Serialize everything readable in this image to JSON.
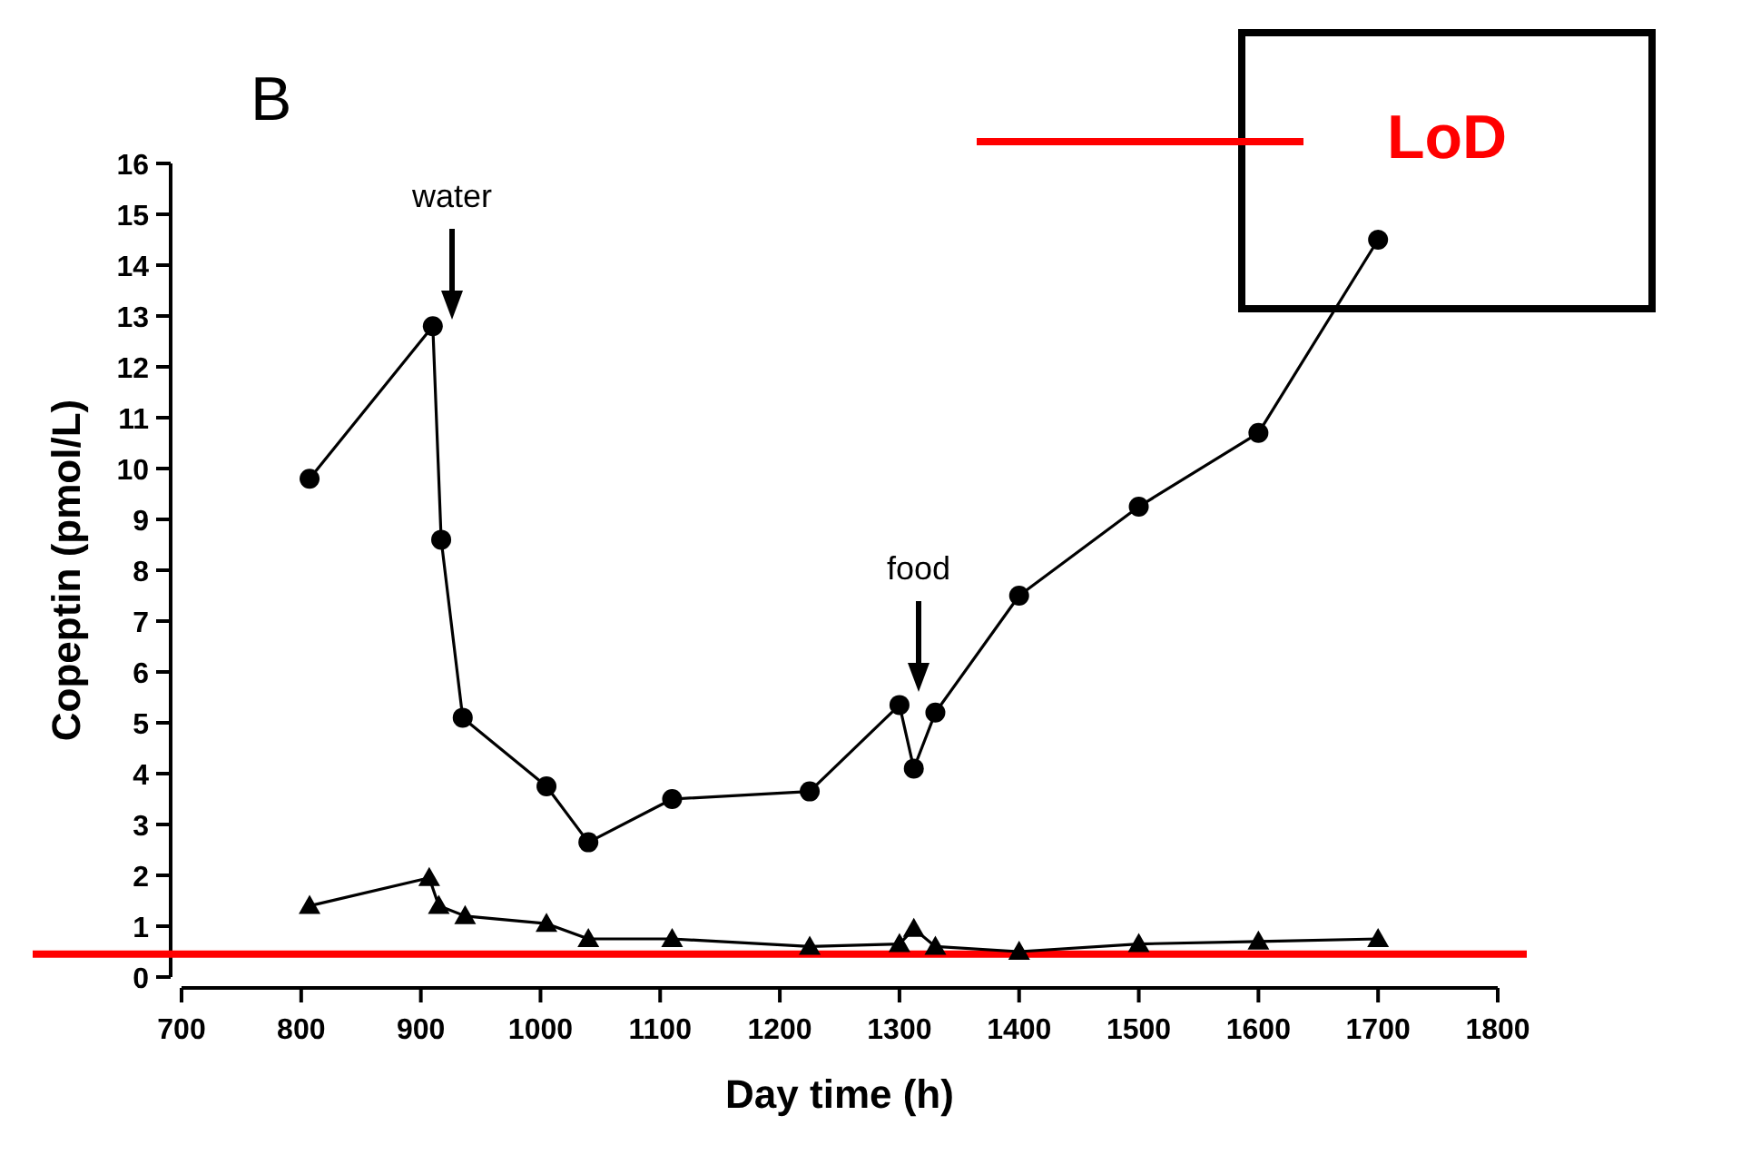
{
  "chart_data": {
    "type": "line",
    "title": "B",
    "xlabel": "Day time (h)",
    "ylabel": "Copeptin (pmol/L)",
    "xlim": [
      700,
      1800
    ],
    "xticks": [
      700,
      800,
      900,
      1000,
      1100,
      1200,
      1300,
      1400,
      1500,
      1600,
      1700,
      1800
    ],
    "ylim": [
      0,
      16
    ],
    "yticks": [
      0,
      1,
      2,
      3,
      4,
      5,
      6,
      7,
      8,
      9,
      10,
      11,
      12,
      13,
      14,
      15,
      16
    ],
    "x": [
      807,
      910,
      917,
      935,
      1005,
      1040,
      1110,
      1225,
      1300,
      1312,
      1330,
      1400,
      1500,
      1600,
      1700
    ],
    "series": [
      {
        "color": "#000000",
        "marker": "circle",
        "values": [
          9.8,
          12.8,
          8.6,
          5.1,
          3.75,
          2.65,
          3.5,
          3.65,
          5.35,
          4.1,
          5.2,
          7.5,
          9.25,
          10.7,
          14.5
        ]
      },
      {
        "color": "#000000",
        "marker": "triangle",
        "x": [
          807,
          907,
          915,
          937,
          1005,
          1040,
          1110,
          1225,
          1300,
          1312,
          1330,
          1400,
          1500,
          1600,
          1700
        ],
        "values": [
          1.4,
          1.95,
          1.4,
          1.2,
          1.05,
          0.75,
          0.75,
          0.6,
          0.65,
          0.95,
          0.6,
          0.5,
          0.65,
          0.7,
          0.75
        ]
      }
    ],
    "ref_lines": [
      {
        "axis": "y",
        "value": 0.45,
        "label": "LoD",
        "color": "#ff0000"
      }
    ],
    "annotations": [
      "water",
      "food"
    ],
    "grid": false,
    "legend": "top right",
    "line_style": "solid"
  }
}
